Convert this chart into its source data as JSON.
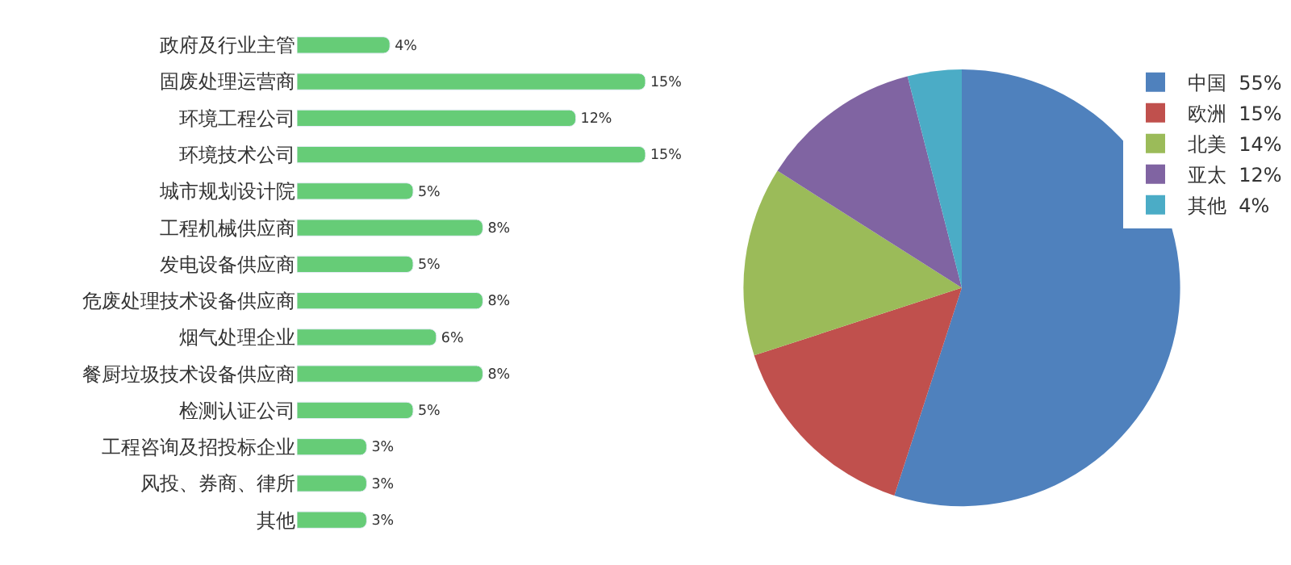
{
  "chart_data": [
    {
      "type": "bar",
      "orientation": "horizontal",
      "categories": [
        "政府及行业主管",
        "固废处理运营商",
        "环境工程公司",
        "环境技术公司",
        "城市规划设计院",
        "工程机械供应商",
        "发电设备供应商",
        "危废处理技术设备供应商",
        "烟气处理企业",
        "餐厨垃圾技术设备供应商",
        "检测认证公司",
        "工程咨询及招投标企业",
        "风投、券商、律所",
        "其他"
      ],
      "values": [
        4,
        15,
        12,
        15,
        5,
        8,
        5,
        8,
        6,
        8,
        5,
        3,
        3,
        3
      ],
      "value_labels": [
        "4%",
        "15%",
        "12%",
        "15%",
        "5%",
        "8%",
        "5%",
        "8%",
        "6%",
        "8%",
        "5%",
        "3%",
        "3%",
        "3%"
      ],
      "color": "#66cc77",
      "legend": false
    },
    {
      "type": "pie",
      "categories": [
        "中国",
        "欧洲",
        "北美",
        "亚太",
        "其他"
      ],
      "values": [
        55,
        15,
        14,
        12,
        4
      ],
      "value_labels": [
        "55%",
        "15%",
        "14%",
        "12%",
        "4%"
      ],
      "colors": [
        "#4f81bd",
        "#c0504d",
        "#9bbb59",
        "#8064a2",
        "#4bacc6"
      ],
      "legend": "top right"
    }
  ]
}
